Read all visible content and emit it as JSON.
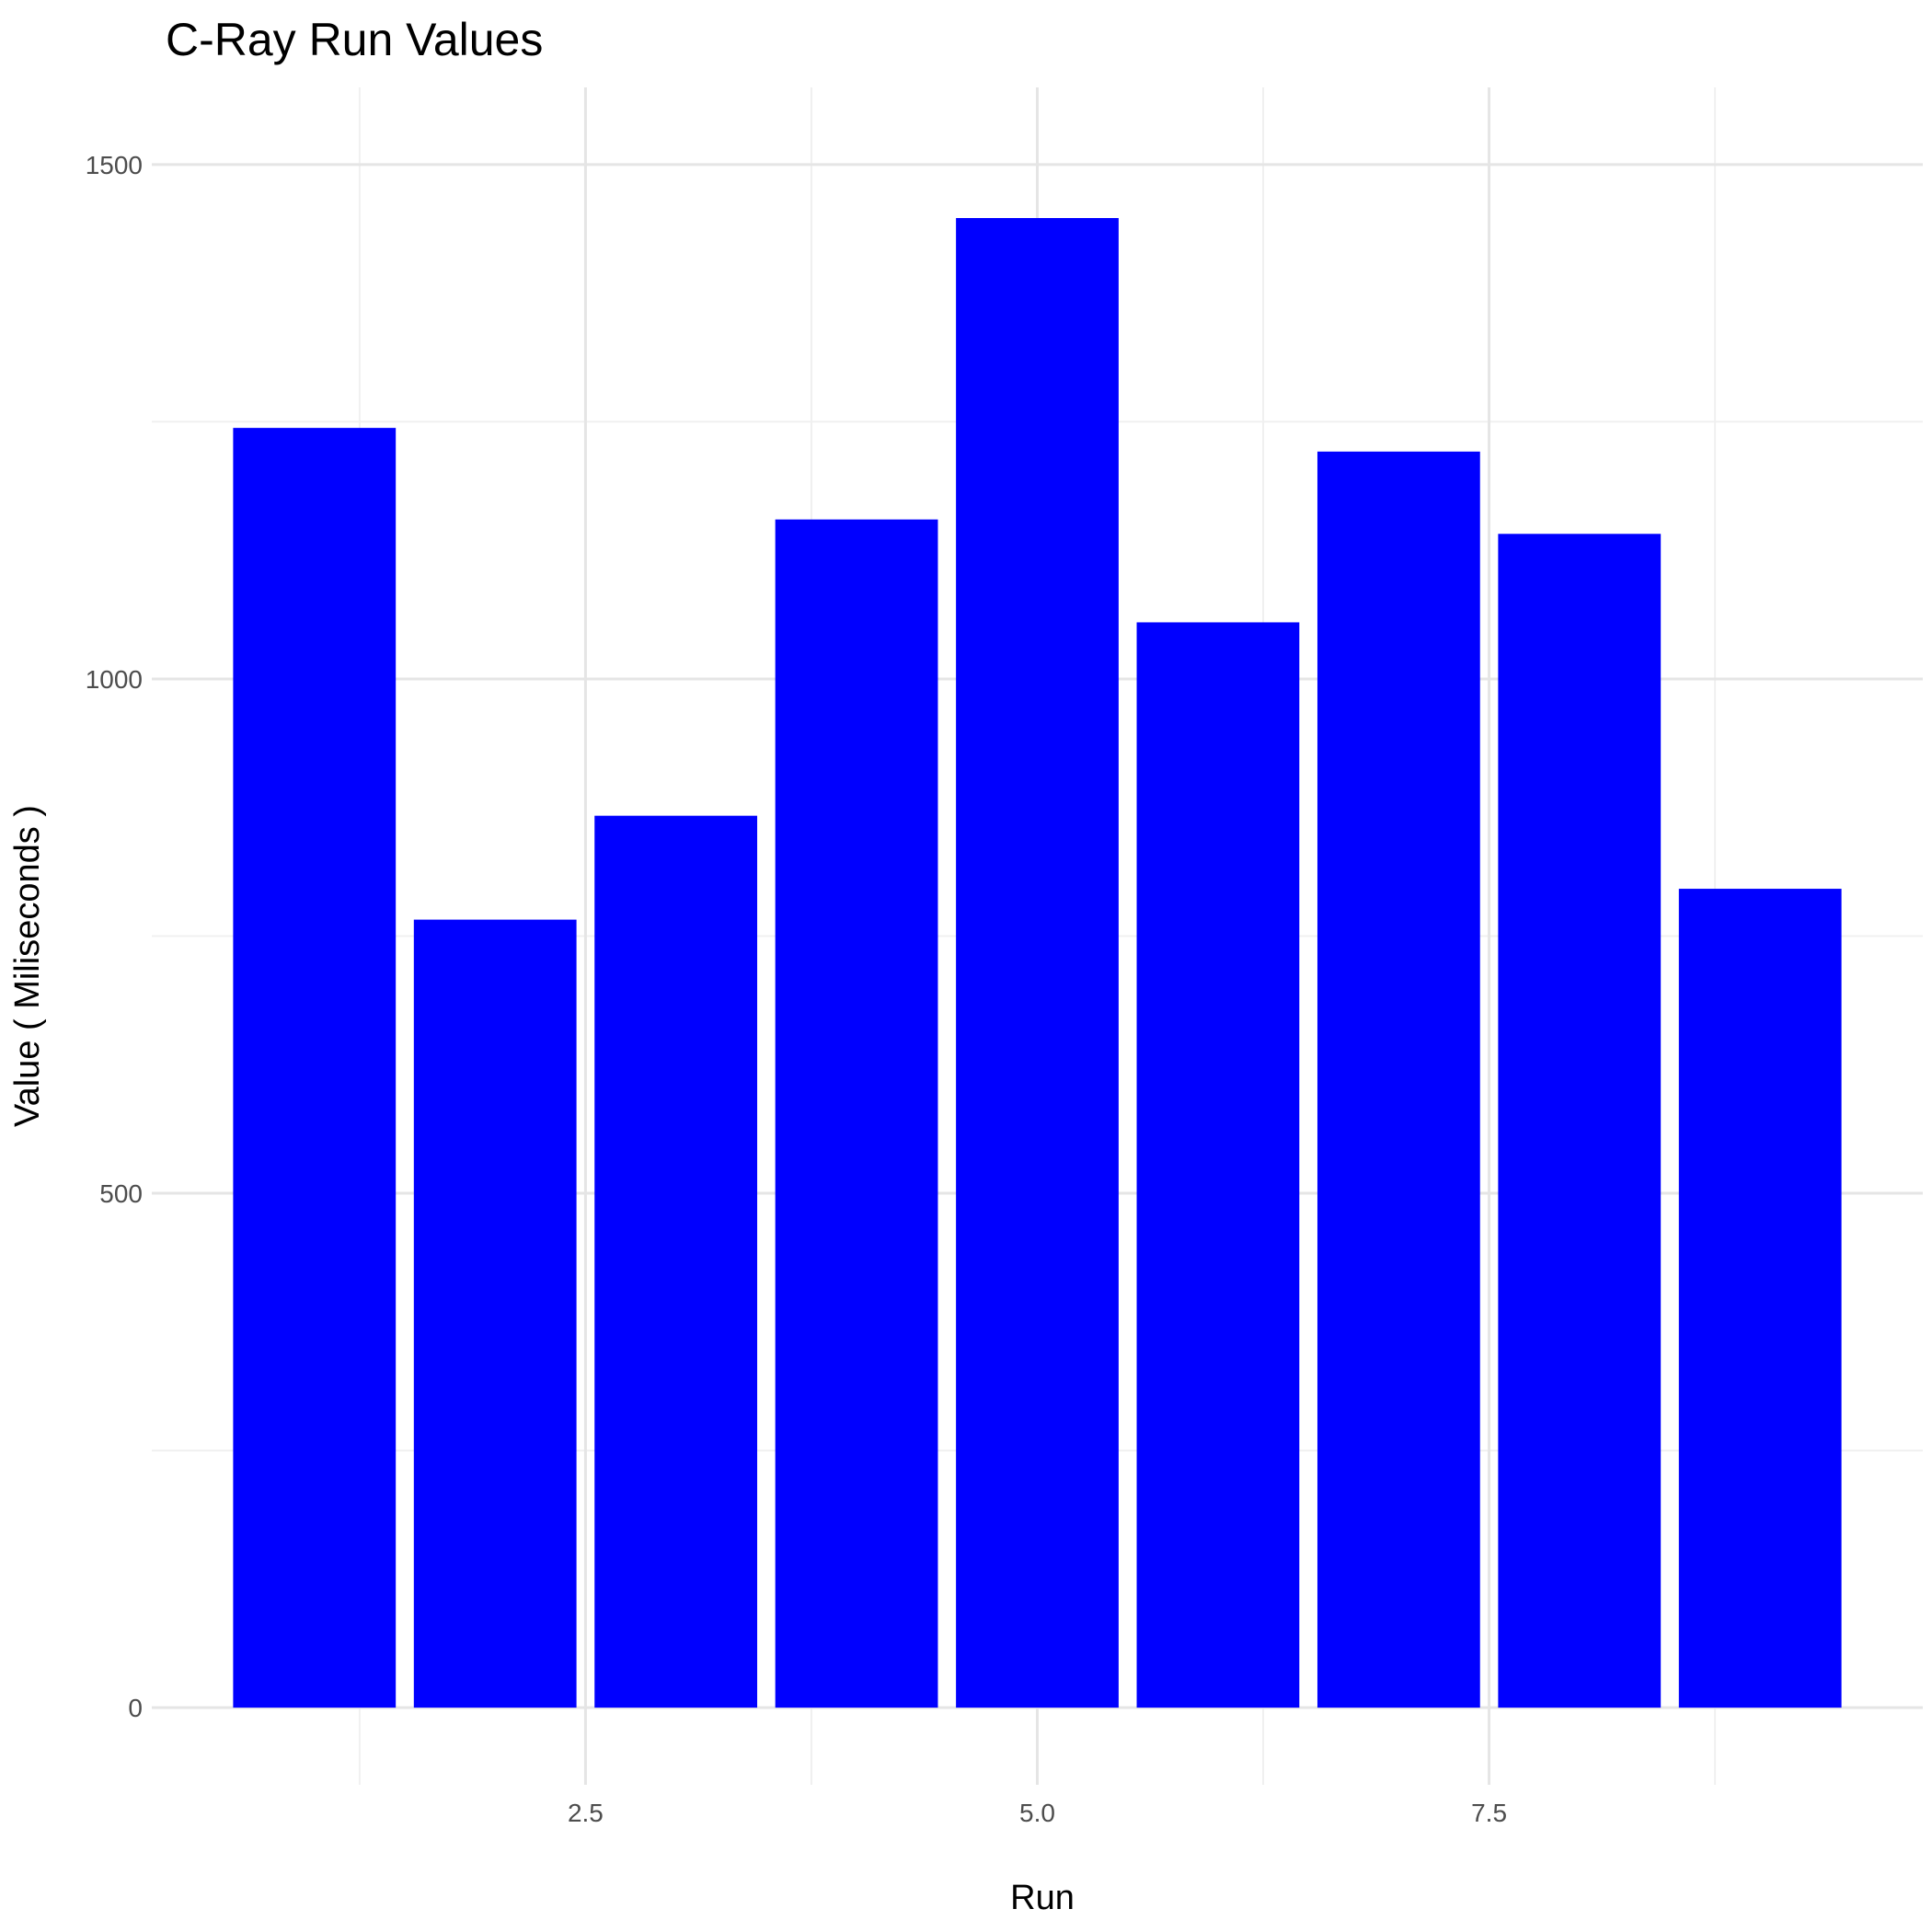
{
  "chart_data": {
    "type": "bar",
    "title": "C-Ray Run Values",
    "xlabel": "Run",
    "ylabel": "Value ( Miliseconds )",
    "x": [
      1,
      2,
      3,
      4,
      5,
      6,
      7,
      8,
      9
    ],
    "values": [
      1244,
      766,
      867,
      1155,
      1448,
      1055,
      1221,
      1141,
      796
    ],
    "xlim": [
      0.1,
      9.9
    ],
    "ylim": [
      -75,
      1575
    ],
    "x_ticks": [
      "2.5",
      "5.0",
      "7.5"
    ],
    "x_tick_values": [
      2.5,
      5.0,
      7.5
    ],
    "y_ticks": [
      "0",
      "500",
      "1000",
      "1500"
    ],
    "y_tick_values": [
      0,
      500,
      1000,
      1500
    ],
    "bar_color": "#0000ff",
    "grid": true,
    "legend": "none"
  }
}
